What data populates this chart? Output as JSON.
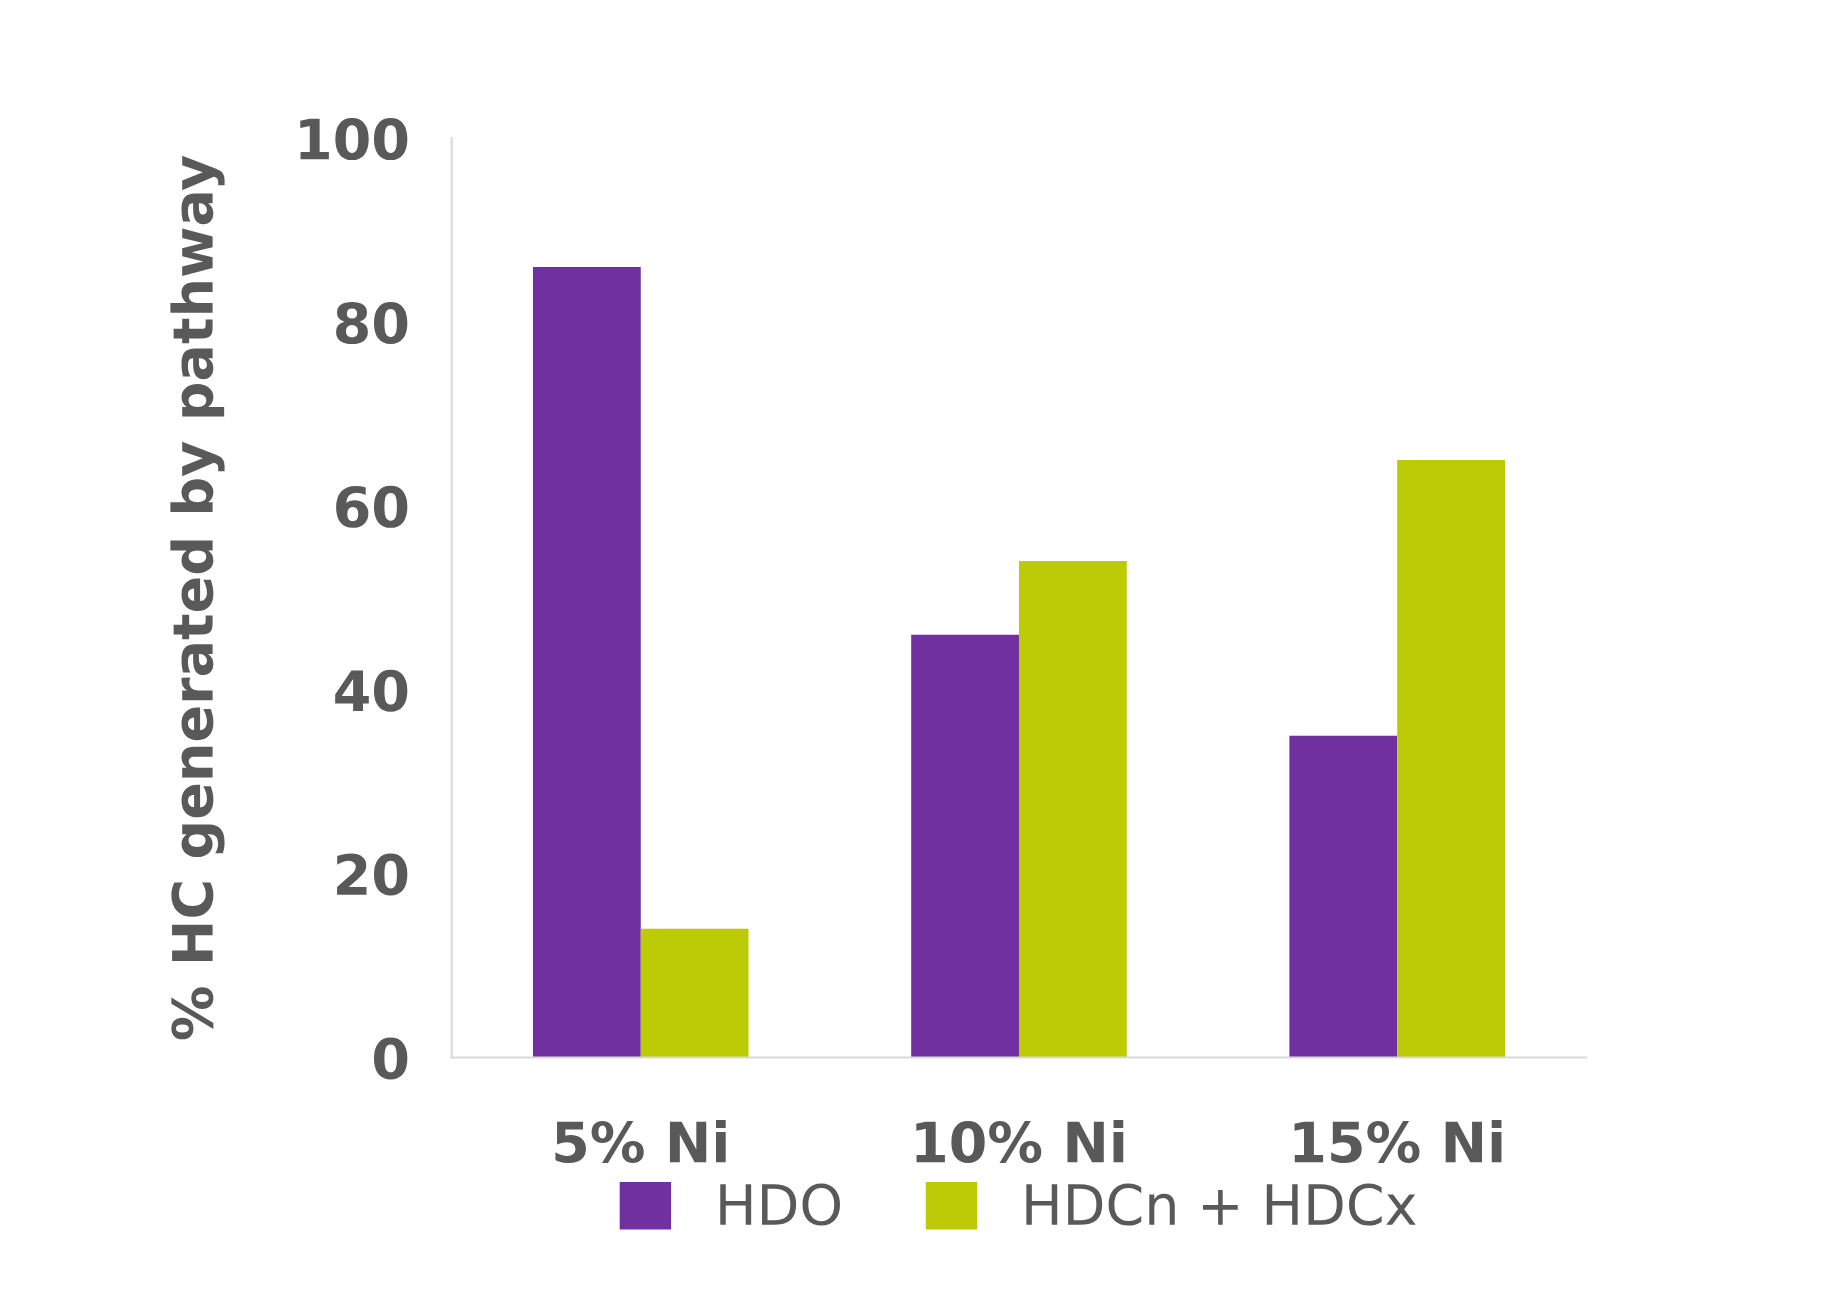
{
  "chart_data": {
    "type": "bar",
    "ylabel": "% HC generated by pathway",
    "categories": [
      "5% Ni",
      "10% Ni",
      "15% Ni"
    ],
    "series": [
      {
        "name": "HDO",
        "color": "#7030a0",
        "values": [
          86,
          46,
          35
        ]
      },
      {
        "name": "HDCn + HDCx",
        "color": "#bccb06",
        "values": [
          14,
          54,
          65
        ]
      }
    ],
    "ylim": [
      0,
      100
    ],
    "yticks": [
      0,
      20,
      40,
      60,
      80,
      100
    ],
    "grid": false,
    "legend": "bottom"
  }
}
